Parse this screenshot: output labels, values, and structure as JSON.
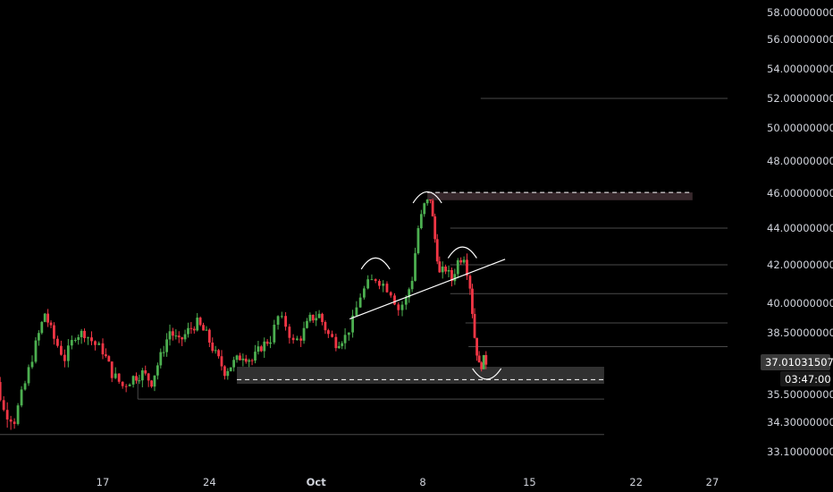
{
  "chart_data": {
    "type": "candlestick",
    "symbol": "",
    "ylim": [
      32.5,
      58.8
    ],
    "y_ticks": [
      58,
      56,
      54,
      52,
      50,
      48,
      46,
      44,
      42,
      40,
      38.5,
      37.01031507,
      35.5,
      34.3,
      33.1
    ],
    "y_tick_labels": [
      "58.00000000",
      "56.00000000",
      "54.00000000",
      "52.00000000",
      "50.00000000",
      "48.00000000",
      "46.00000000",
      "44.00000000",
      "42.00000000",
      "40.00000000",
      "38.50000000",
      "35.50000000",
      "34.30000000",
      "33.10000000"
    ],
    "x_tick_labels": [
      {
        "label": "17",
        "day": 17,
        "bold": false
      },
      {
        "label": "24",
        "day": 24,
        "bold": false
      },
      {
        "label": "Oct",
        "day": 31,
        "bold": true
      },
      {
        "label": "8",
        "day": 38,
        "bold": false
      },
      {
        "label": "15",
        "day": 45,
        "bold": false
      },
      {
        "label": "22",
        "day": 52,
        "bold": false
      },
      {
        "label": "27",
        "day": 57,
        "bold": false
      }
    ],
    "last_price": "37.01031507",
    "countdown": "03:47:00",
    "colors": {
      "up": "#4caf50",
      "down": "#f23645",
      "grid": "#2a2a2a",
      "text": "#d1d4dc",
      "zone": "#3a2a2e",
      "support_zone": "#3a3a3a"
    },
    "support_zone": {
      "from": 36.0,
      "to": 36.8
    },
    "resistance_zone": {
      "from": 45.6,
      "to": 46.05
    },
    "levels": [
      {
        "price": 52.0,
        "from_day": 41.8,
        "to_day": 58.0
      },
      {
        "price": 44.0,
        "from_day": 39.8,
        "to_day": 58.0
      },
      {
        "price": 42.0,
        "from_day": 39.8,
        "to_day": 58.0
      },
      {
        "price": 40.5,
        "from_day": 39.8,
        "to_day": 58.0
      },
      {
        "price": 39.0,
        "from_day": 40.8,
        "to_day": 58.0
      },
      {
        "price": 37.8,
        "from_day": 41.0,
        "to_day": 58.0
      },
      {
        "price": 35.3,
        "from_day": 19.3,
        "to_day": 49.9
      },
      {
        "price": 33.8,
        "from_day": 9.6,
        "to_day": 49.9
      }
    ],
    "trendline": {
      "from": {
        "day": 33.2,
        "price": 39.2
      },
      "to": {
        "day": 43.4,
        "price": 42.3
      }
    },
    "ohlc_close_path": [
      [
        9.0,
        37.5
      ],
      [
        9.8,
        36.6
      ],
      [
        10.5,
        34.8
      ],
      [
        11.2,
        34.4
      ],
      [
        11.9,
        36.0
      ],
      [
        12.6,
        37.9
      ],
      [
        13.2,
        39.5
      ],
      [
        13.8,
        38.2
      ],
      [
        14.5,
        37.2
      ],
      [
        15.2,
        38.4
      ],
      [
        15.8,
        38.5
      ],
      [
        16.5,
        37.9
      ],
      [
        17.0,
        37.6
      ],
      [
        17.6,
        36.5
      ],
      [
        18.3,
        35.9
      ],
      [
        19.0,
        36.3
      ],
      [
        19.6,
        36.5
      ],
      [
        20.2,
        36.1
      ],
      [
        20.8,
        37.3
      ],
      [
        21.4,
        38.6
      ],
      [
        22.0,
        38.0
      ],
      [
        22.6,
        38.6
      ],
      [
        23.2,
        39.0
      ],
      [
        23.8,
        38.4
      ],
      [
        24.4,
        37.4
      ],
      [
        25.0,
        36.6
      ],
      [
        25.6,
        37.0
      ],
      [
        26.2,
        37.4
      ],
      [
        26.8,
        37.1
      ],
      [
        27.4,
        37.8
      ],
      [
        28.0,
        38.2
      ],
      [
        28.5,
        39.3
      ],
      [
        29.0,
        38.9
      ],
      [
        29.5,
        38.0
      ],
      [
        30.0,
        38.3
      ],
      [
        30.6,
        39.2
      ],
      [
        31.2,
        39.4
      ],
      [
        31.8,
        38.4
      ],
      [
        32.3,
        38.0
      ],
      [
        32.9,
        38.3
      ],
      [
        33.4,
        39.1
      ],
      [
        33.9,
        40.4
      ],
      [
        34.4,
        41.0
      ],
      [
        34.9,
        41.3
      ],
      [
        35.4,
        41.0
      ],
      [
        35.9,
        40.6
      ],
      [
        36.4,
        39.7
      ],
      [
        36.9,
        40.2
      ],
      [
        37.3,
        41.3
      ],
      [
        37.7,
        44.0
      ],
      [
        38.1,
        45.3
      ],
      [
        38.5,
        45.7
      ],
      [
        38.8,
        43.4
      ],
      [
        39.1,
        41.5
      ],
      [
        39.5,
        41.8
      ],
      [
        39.9,
        41.2
      ],
      [
        40.3,
        42.2
      ],
      [
        40.7,
        42.5
      ],
      [
        41.1,
        40.9
      ],
      [
        41.4,
        38.3
      ],
      [
        41.7,
        36.8
      ],
      [
        42.0,
        37.1
      ],
      [
        42.3,
        37.0
      ]
    ],
    "annotations": [
      {
        "shape": "arc",
        "kind": "top",
        "center_day": 34.9,
        "price": 42.2
      },
      {
        "shape": "arc",
        "kind": "top",
        "center_day": 38.3,
        "price": 45.9
      },
      {
        "shape": "arc",
        "kind": "top",
        "center_day": 40.6,
        "price": 42.8
      },
      {
        "shape": "arc",
        "kind": "bottom",
        "center_day": 42.2,
        "price": 36.3
      }
    ]
  }
}
